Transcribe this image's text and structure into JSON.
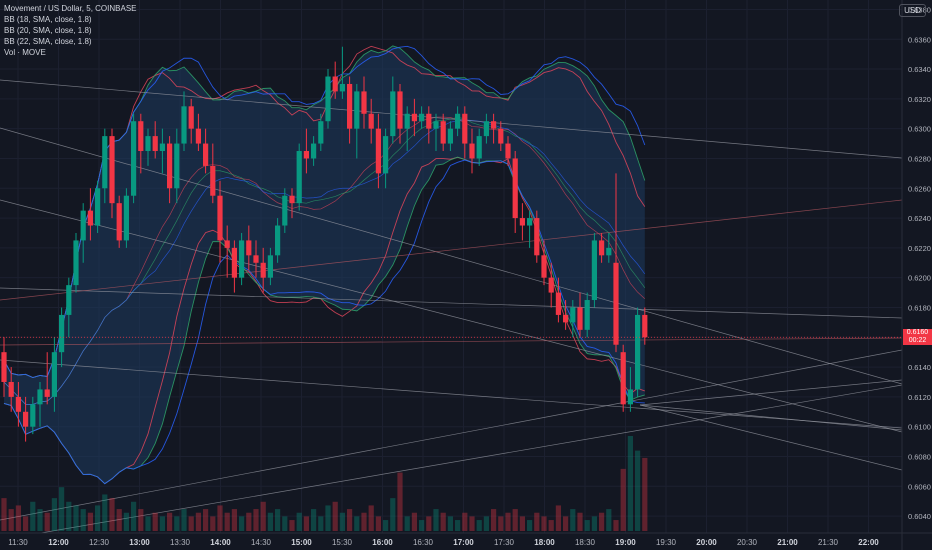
{
  "legend": {
    "title": "Movement / US Dollar, 5, COINBASE",
    "bb1": "BB (18, SMA, close, 1.8)",
    "bb2": "BB (20, SMA, close, 1.8)",
    "bb3": "BB (22, SMA, close, 1.8)",
    "vol": "Vol · MOVE"
  },
  "currency": "USD",
  "last_price": {
    "value": "0.6160",
    "countdown": "00:22"
  },
  "colors": {
    "bg": "#131722",
    "up": "#089981",
    "down": "#f23645",
    "band_fill": "#1e3a5f",
    "bb_upper_red": "#e0455a",
    "bb_green": "#2ea66b",
    "bb_blue": "#2962ff"
  },
  "chart_data": {
    "type": "candlestick",
    "symbol": "Movement / US Dollar",
    "timeframe": "5",
    "exchange": "COINBASE",
    "y_ticks": [
      "0.6380",
      "0.6360",
      "0.6340",
      "0.6320",
      "0.6300",
      "0.6280",
      "0.6260",
      "0.6240",
      "0.6220",
      "0.6200",
      "0.6180",
      "0.6160",
      "0.6140",
      "0.6120",
      "0.6100",
      "0.6080",
      "0.6060",
      "0.6040"
    ],
    "ylim": [
      0.603,
      0.6385
    ],
    "x_labels": [
      {
        "t": "11:30",
        "bold": false
      },
      {
        "t": "12:00",
        "bold": true
      },
      {
        "t": "12:30",
        "bold": false
      },
      {
        "t": "13:00",
        "bold": true
      },
      {
        "t": "13:30",
        "bold": false
      },
      {
        "t": "14:00",
        "bold": true
      },
      {
        "t": "14:30",
        "bold": false
      },
      {
        "t": "15:00",
        "bold": true
      },
      {
        "t": "15:30",
        "bold": false
      },
      {
        "t": "16:00",
        "bold": true
      },
      {
        "t": "16:30",
        "bold": false
      },
      {
        "t": "17:00",
        "bold": true
      },
      {
        "t": "17:30",
        "bold": false
      },
      {
        "t": "18:00",
        "bold": true
      },
      {
        "t": "18:30",
        "bold": false
      },
      {
        "t": "19:00",
        "bold": true
      },
      {
        "t": "19:30",
        "bold": false
      },
      {
        "t": "20:00",
        "bold": true
      },
      {
        "t": "20:30",
        "bold": false
      },
      {
        "t": "21:00",
        "bold": true
      },
      {
        "t": "21:30",
        "bold": false
      },
      {
        "t": "22:00",
        "bold": true
      }
    ],
    "candles": [
      {
        "o": 0.615,
        "h": 0.616,
        "l": 0.612,
        "c": 0.613
      },
      {
        "o": 0.613,
        "h": 0.614,
        "l": 0.611,
        "c": 0.612
      },
      {
        "o": 0.612,
        "h": 0.613,
        "l": 0.61,
        "c": 0.611
      },
      {
        "o": 0.611,
        "h": 0.612,
        "l": 0.609,
        "c": 0.61
      },
      {
        "o": 0.61,
        "h": 0.612,
        "l": 0.6095,
        "c": 0.6115
      },
      {
        "o": 0.6115,
        "h": 0.613,
        "l": 0.61,
        "c": 0.6125
      },
      {
        "o": 0.6125,
        "h": 0.615,
        "l": 0.6115,
        "c": 0.612
      },
      {
        "o": 0.612,
        "h": 0.616,
        "l": 0.611,
        "c": 0.615
      },
      {
        "o": 0.615,
        "h": 0.618,
        "l": 0.614,
        "c": 0.6175
      },
      {
        "o": 0.6175,
        "h": 0.62,
        "l": 0.616,
        "c": 0.6195
      },
      {
        "o": 0.6195,
        "h": 0.623,
        "l": 0.619,
        "c": 0.6225
      },
      {
        "o": 0.6225,
        "h": 0.625,
        "l": 0.621,
        "c": 0.6245
      },
      {
        "o": 0.6245,
        "h": 0.626,
        "l": 0.6225,
        "c": 0.6235
      },
      {
        "o": 0.6235,
        "h": 0.6265,
        "l": 0.623,
        "c": 0.626
      },
      {
        "o": 0.626,
        "h": 0.63,
        "l": 0.625,
        "c": 0.6295
      },
      {
        "o": 0.6295,
        "h": 0.63,
        "l": 0.624,
        "c": 0.625
      },
      {
        "o": 0.625,
        "h": 0.6255,
        "l": 0.622,
        "c": 0.6225
      },
      {
        "o": 0.6225,
        "h": 0.626,
        "l": 0.622,
        "c": 0.6255
      },
      {
        "o": 0.6255,
        "h": 0.631,
        "l": 0.625,
        "c": 0.6305
      },
      {
        "o": 0.6305,
        "h": 0.631,
        "l": 0.627,
        "c": 0.6285
      },
      {
        "o": 0.6285,
        "h": 0.63,
        "l": 0.6275,
        "c": 0.6295
      },
      {
        "o": 0.6295,
        "h": 0.6305,
        "l": 0.628,
        "c": 0.6285
      },
      {
        "o": 0.6285,
        "h": 0.63,
        "l": 0.627,
        "c": 0.629
      },
      {
        "o": 0.629,
        "h": 0.6295,
        "l": 0.625,
        "c": 0.626
      },
      {
        "o": 0.626,
        "h": 0.63,
        "l": 0.625,
        "c": 0.629
      },
      {
        "o": 0.629,
        "h": 0.6325,
        "l": 0.6285,
        "c": 0.6315
      },
      {
        "o": 0.6315,
        "h": 0.632,
        "l": 0.629,
        "c": 0.63
      },
      {
        "o": 0.63,
        "h": 0.631,
        "l": 0.6285,
        "c": 0.629
      },
      {
        "o": 0.629,
        "h": 0.63,
        "l": 0.627,
        "c": 0.6275
      },
      {
        "o": 0.6275,
        "h": 0.629,
        "l": 0.625,
        "c": 0.6255
      },
      {
        "o": 0.6255,
        "h": 0.6265,
        "l": 0.621,
        "c": 0.6225
      },
      {
        "o": 0.6225,
        "h": 0.6235,
        "l": 0.62,
        "c": 0.622
      },
      {
        "o": 0.622,
        "h": 0.6225,
        "l": 0.619,
        "c": 0.62
      },
      {
        "o": 0.62,
        "h": 0.623,
        "l": 0.6195,
        "c": 0.6225
      },
      {
        "o": 0.6225,
        "h": 0.6235,
        "l": 0.6205,
        "c": 0.6215
      },
      {
        "o": 0.6215,
        "h": 0.6225,
        "l": 0.62,
        "c": 0.621
      },
      {
        "o": 0.621,
        "h": 0.622,
        "l": 0.619,
        "c": 0.62
      },
      {
        "o": 0.62,
        "h": 0.622,
        "l": 0.6195,
        "c": 0.6215
      },
      {
        "o": 0.6215,
        "h": 0.624,
        "l": 0.621,
        "c": 0.6235
      },
      {
        "o": 0.6235,
        "h": 0.626,
        "l": 0.623,
        "c": 0.6255
      },
      {
        "o": 0.6255,
        "h": 0.626,
        "l": 0.624,
        "c": 0.625
      },
      {
        "o": 0.625,
        "h": 0.629,
        "l": 0.6245,
        "c": 0.6285
      },
      {
        "o": 0.6285,
        "h": 0.63,
        "l": 0.627,
        "c": 0.628
      },
      {
        "o": 0.628,
        "h": 0.6295,
        "l": 0.6275,
        "c": 0.629
      },
      {
        "o": 0.629,
        "h": 0.631,
        "l": 0.6285,
        "c": 0.6305
      },
      {
        "o": 0.6305,
        "h": 0.634,
        "l": 0.63,
        "c": 0.6335
      },
      {
        "o": 0.6335,
        "h": 0.6345,
        "l": 0.632,
        "c": 0.6325
      },
      {
        "o": 0.6325,
        "h": 0.6355,
        "l": 0.632,
        "c": 0.633
      },
      {
        "o": 0.633,
        "h": 0.6335,
        "l": 0.629,
        "c": 0.63
      },
      {
        "o": 0.63,
        "h": 0.633,
        "l": 0.628,
        "c": 0.6325
      },
      {
        "o": 0.6325,
        "h": 0.6335,
        "l": 0.63,
        "c": 0.631
      },
      {
        "o": 0.631,
        "h": 0.632,
        "l": 0.629,
        "c": 0.63
      },
      {
        "o": 0.63,
        "h": 0.631,
        "l": 0.626,
        "c": 0.627
      },
      {
        "o": 0.627,
        "h": 0.63,
        "l": 0.626,
        "c": 0.6295
      },
      {
        "o": 0.6295,
        "h": 0.6335,
        "l": 0.629,
        "c": 0.6325
      },
      {
        "o": 0.6325,
        "h": 0.633,
        "l": 0.629,
        "c": 0.63
      },
      {
        "o": 0.63,
        "h": 0.6315,
        "l": 0.6285,
        "c": 0.631
      },
      {
        "o": 0.631,
        "h": 0.632,
        "l": 0.6295,
        "c": 0.6305
      },
      {
        "o": 0.6305,
        "h": 0.6315,
        "l": 0.63,
        "c": 0.631
      },
      {
        "o": 0.631,
        "h": 0.6315,
        "l": 0.629,
        "c": 0.63
      },
      {
        "o": 0.63,
        "h": 0.631,
        "l": 0.6285,
        "c": 0.6305
      },
      {
        "o": 0.6305,
        "h": 0.631,
        "l": 0.6285,
        "c": 0.629
      },
      {
        "o": 0.629,
        "h": 0.6305,
        "l": 0.6285,
        "c": 0.63
      },
      {
        "o": 0.63,
        "h": 0.6315,
        "l": 0.6295,
        "c": 0.631
      },
      {
        "o": 0.631,
        "h": 0.6315,
        "l": 0.628,
        "c": 0.629
      },
      {
        "o": 0.629,
        "h": 0.63,
        "l": 0.627,
        "c": 0.628
      },
      {
        "o": 0.628,
        "h": 0.63,
        "l": 0.6275,
        "c": 0.6295
      },
      {
        "o": 0.6295,
        "h": 0.631,
        "l": 0.629,
        "c": 0.6305
      },
      {
        "o": 0.6305,
        "h": 0.631,
        "l": 0.629,
        "c": 0.63
      },
      {
        "o": 0.63,
        "h": 0.6305,
        "l": 0.6285,
        "c": 0.629
      },
      {
        "o": 0.629,
        "h": 0.6295,
        "l": 0.6275,
        "c": 0.628
      },
      {
        "o": 0.628,
        "h": 0.6285,
        "l": 0.623,
        "c": 0.624
      },
      {
        "o": 0.624,
        "h": 0.625,
        "l": 0.6225,
        "c": 0.6235
      },
      {
        "o": 0.6235,
        "h": 0.6245,
        "l": 0.622,
        "c": 0.624
      },
      {
        "o": 0.624,
        "h": 0.6245,
        "l": 0.621,
        "c": 0.6215
      },
      {
        "o": 0.6215,
        "h": 0.6225,
        "l": 0.6195,
        "c": 0.62
      },
      {
        "o": 0.62,
        "h": 0.621,
        "l": 0.618,
        "c": 0.619
      },
      {
        "o": 0.619,
        "h": 0.62,
        "l": 0.617,
        "c": 0.6175
      },
      {
        "o": 0.6175,
        "h": 0.6185,
        "l": 0.6165,
        "c": 0.617
      },
      {
        "o": 0.617,
        "h": 0.6185,
        "l": 0.616,
        "c": 0.618
      },
      {
        "o": 0.618,
        "h": 0.619,
        "l": 0.616,
        "c": 0.6165
      },
      {
        "o": 0.6165,
        "h": 0.619,
        "l": 0.616,
        "c": 0.6185
      },
      {
        "o": 0.6185,
        "h": 0.623,
        "l": 0.618,
        "c": 0.6225
      },
      {
        "o": 0.6225,
        "h": 0.623,
        "l": 0.621,
        "c": 0.6215
      },
      {
        "o": 0.6215,
        "h": 0.623,
        "l": 0.621,
        "c": 0.622
      },
      {
        "o": 0.621,
        "h": 0.627,
        "l": 0.615,
        "c": 0.6155
      },
      {
        "o": 0.615,
        "h": 0.6155,
        "l": 0.611,
        "c": 0.6115
      },
      {
        "o": 0.6115,
        "h": 0.614,
        "l": 0.611,
        "c": 0.6125
      },
      {
        "o": 0.6125,
        "h": 0.618,
        "l": 0.612,
        "c": 0.6175
      },
      {
        "o": 0.6175,
        "h": 0.618,
        "l": 0.6155,
        "c": 0.616
      }
    ],
    "volume": [
      9,
      6,
      7,
      4,
      8,
      6,
      5,
      9,
      12,
      8,
      7,
      6,
      5,
      7,
      10,
      9,
      6,
      5,
      8,
      6,
      4,
      5,
      4,
      5,
      4,
      6,
      4,
      5,
      6,
      4,
      7,
      5,
      6,
      4,
      5,
      6,
      8,
      5,
      6,
      4,
      3,
      5,
      4,
      6,
      4,
      7,
      8,
      5,
      6,
      4,
      5,
      7,
      4,
      3,
      9,
      16,
      4,
      5,
      3,
      4,
      6,
      5,
      4,
      3,
      5,
      4,
      3,
      4,
      6,
      4,
      5,
      6,
      4,
      3,
      5,
      4,
      3,
      7,
      4,
      6,
      5,
      3,
      4,
      5,
      6,
      3,
      17,
      26,
      22,
      20
    ]
  }
}
